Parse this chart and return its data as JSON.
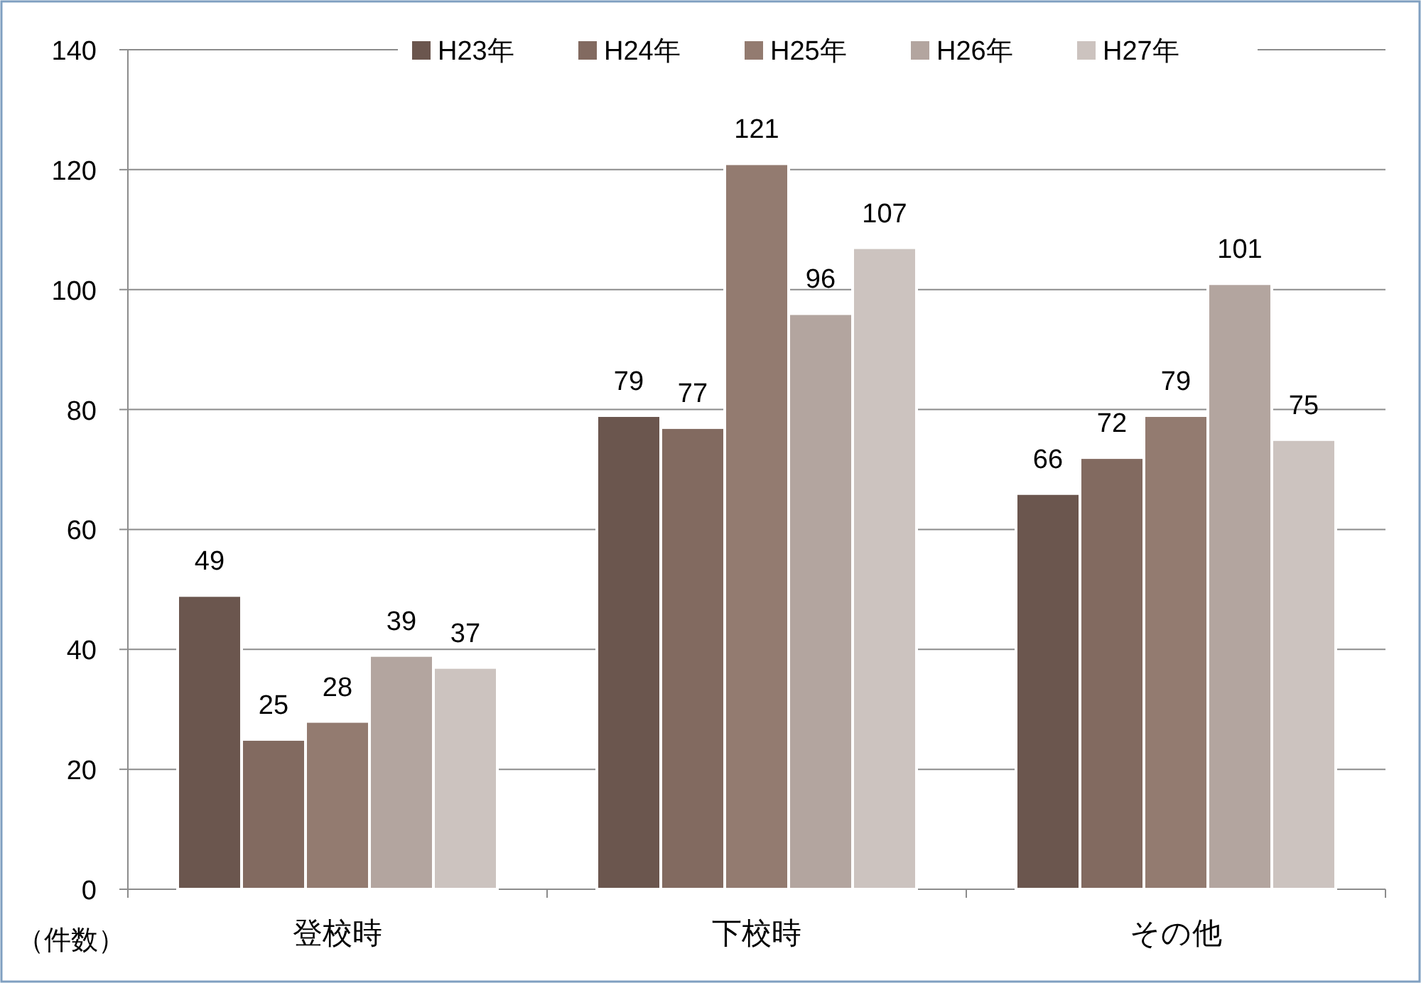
{
  "chart_data": {
    "type": "bar",
    "ylabel": "（件数）",
    "categories": [
      "登校時",
      "下校時",
      "その他"
    ],
    "series": [
      {
        "name": "H23年",
        "color": "#6b564e",
        "values": [
          49,
          79,
          66
        ]
      },
      {
        "name": "H24年",
        "color": "#826a60",
        "values": [
          25,
          77,
          72
        ]
      },
      {
        "name": "H25年",
        "color": "#937b70",
        "values": [
          28,
          121,
          79
        ]
      },
      {
        "name": "H26年",
        "color": "#b3a59f",
        "values": [
          39,
          96,
          101
        ]
      },
      {
        "name": "H27年",
        "color": "#ccc3bf",
        "values": [
          37,
          107,
          75
        ]
      }
    ],
    "ylim": [
      0,
      140
    ],
    "yticks": [
      0,
      20,
      40,
      60,
      80,
      100,
      120,
      140
    ],
    "grid": "y",
    "legend": "top",
    "data_labels": true
  }
}
